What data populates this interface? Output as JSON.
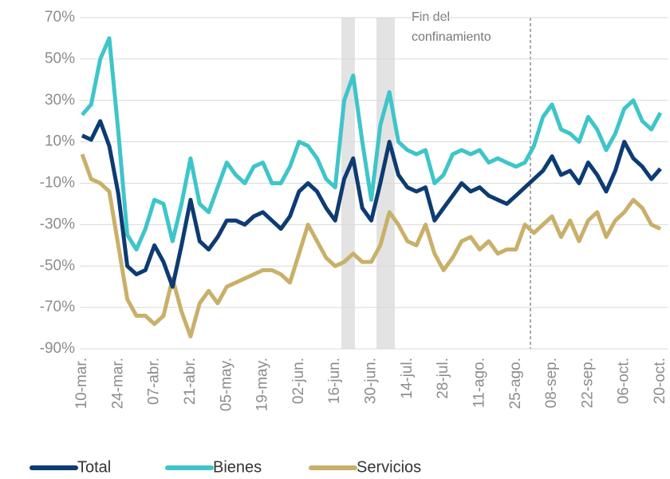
{
  "chart_data": {
    "type": "line",
    "categories": [
      "10-mar.",
      null,
      null,
      null,
      "24-mar.",
      null,
      null,
      null,
      "07-abr.",
      null,
      null,
      null,
      "21-abr.",
      null,
      null,
      null,
      "05-may.",
      null,
      null,
      null,
      "19-may.",
      null,
      null,
      null,
      "02-jun.",
      null,
      null,
      null,
      "16-jun.",
      null,
      null,
      null,
      "30-jun.",
      null,
      null,
      null,
      "14-jul.",
      null,
      null,
      null,
      "28-jul.",
      null,
      null,
      null,
      "11-ago.",
      null,
      null,
      null,
      "25-ago.",
      null,
      null,
      null,
      "08-sep.",
      null,
      null,
      null,
      "22-sep.",
      null,
      null,
      null,
      "06-oct.",
      null,
      null,
      null,
      "20-oct."
    ],
    "series": [
      {
        "name": "Total",
        "color": "#0d3b73",
        "values": [
          13,
          11,
          20,
          8,
          -15,
          -50,
          -54,
          -52,
          -40,
          -48,
          -60,
          -40,
          -18,
          -38,
          -42,
          -36,
          -28,
          -28,
          -30,
          -26,
          -24,
          -28,
          -32,
          -26,
          -14,
          -10,
          -14,
          -22,
          -28,
          -8,
          2,
          -22,
          -28,
          -10,
          10,
          -6,
          -12,
          -14,
          -12,
          -28,
          -22,
          -16,
          -10,
          -14,
          -12,
          -16,
          -18,
          -20,
          -16,
          -12,
          -8,
          -4,
          3,
          -6,
          -4,
          -10,
          0,
          -6,
          -14,
          -4,
          10,
          2,
          -2,
          -8,
          -3
        ]
      },
      {
        "name": "Bienes",
        "color": "#3ec5c9",
        "values": [
          23,
          28,
          50,
          60,
          15,
          -35,
          -42,
          -32,
          -18,
          -20,
          -38,
          -20,
          2,
          -20,
          -24,
          -12,
          0,
          -6,
          -10,
          -2,
          0,
          -10,
          -10,
          -2,
          10,
          8,
          2,
          -8,
          -12,
          30,
          42,
          10,
          -18,
          18,
          34,
          10,
          6,
          4,
          6,
          -10,
          -6,
          4,
          6,
          4,
          6,
          0,
          2,
          0,
          -2,
          0,
          8,
          22,
          28,
          16,
          14,
          10,
          22,
          16,
          6,
          14,
          26,
          30,
          20,
          16,
          24
        ]
      },
      {
        "name": "Servicios",
        "color": "#c9b06a",
        "values": [
          4,
          -8,
          -10,
          -14,
          -40,
          -66,
          -74,
          -74,
          -78,
          -74,
          -56,
          -72,
          -84,
          -68,
          -62,
          -68,
          -60,
          -58,
          -56,
          -54,
          -52,
          -52,
          -54,
          -58,
          -44,
          -30,
          -38,
          -46,
          -50,
          -48,
          -44,
          -48,
          -48,
          -40,
          -24,
          -30,
          -38,
          -40,
          -30,
          -44,
          -52,
          -46,
          -38,
          -36,
          -42,
          -38,
          -44,
          -42,
          -42,
          -30,
          -34,
          -30,
          -26,
          -36,
          -28,
          -38,
          -28,
          -24,
          -36,
          -28,
          -24,
          -18,
          -22,
          -30,
          -32
        ]
      }
    ],
    "ylim": [
      -90,
      70
    ],
    "yticks": [
      {
        "value": -90,
        "label": "-90%"
      },
      {
        "value": -70,
        "label": "-70%"
      },
      {
        "value": -50,
        "label": "-50%"
      },
      {
        "value": -30,
        "label": "-30%"
      },
      {
        "value": -10,
        "label": "-10%"
      },
      {
        "value": 10,
        "label": "10%"
      },
      {
        "value": 30,
        "label": "30%"
      },
      {
        "value": 50,
        "label": "50%"
      },
      {
        "value": 70,
        "label": "70%"
      }
    ],
    "grid": true,
    "annotation": [
      "Fin del",
      "confinamiento"
    ]
  }
}
